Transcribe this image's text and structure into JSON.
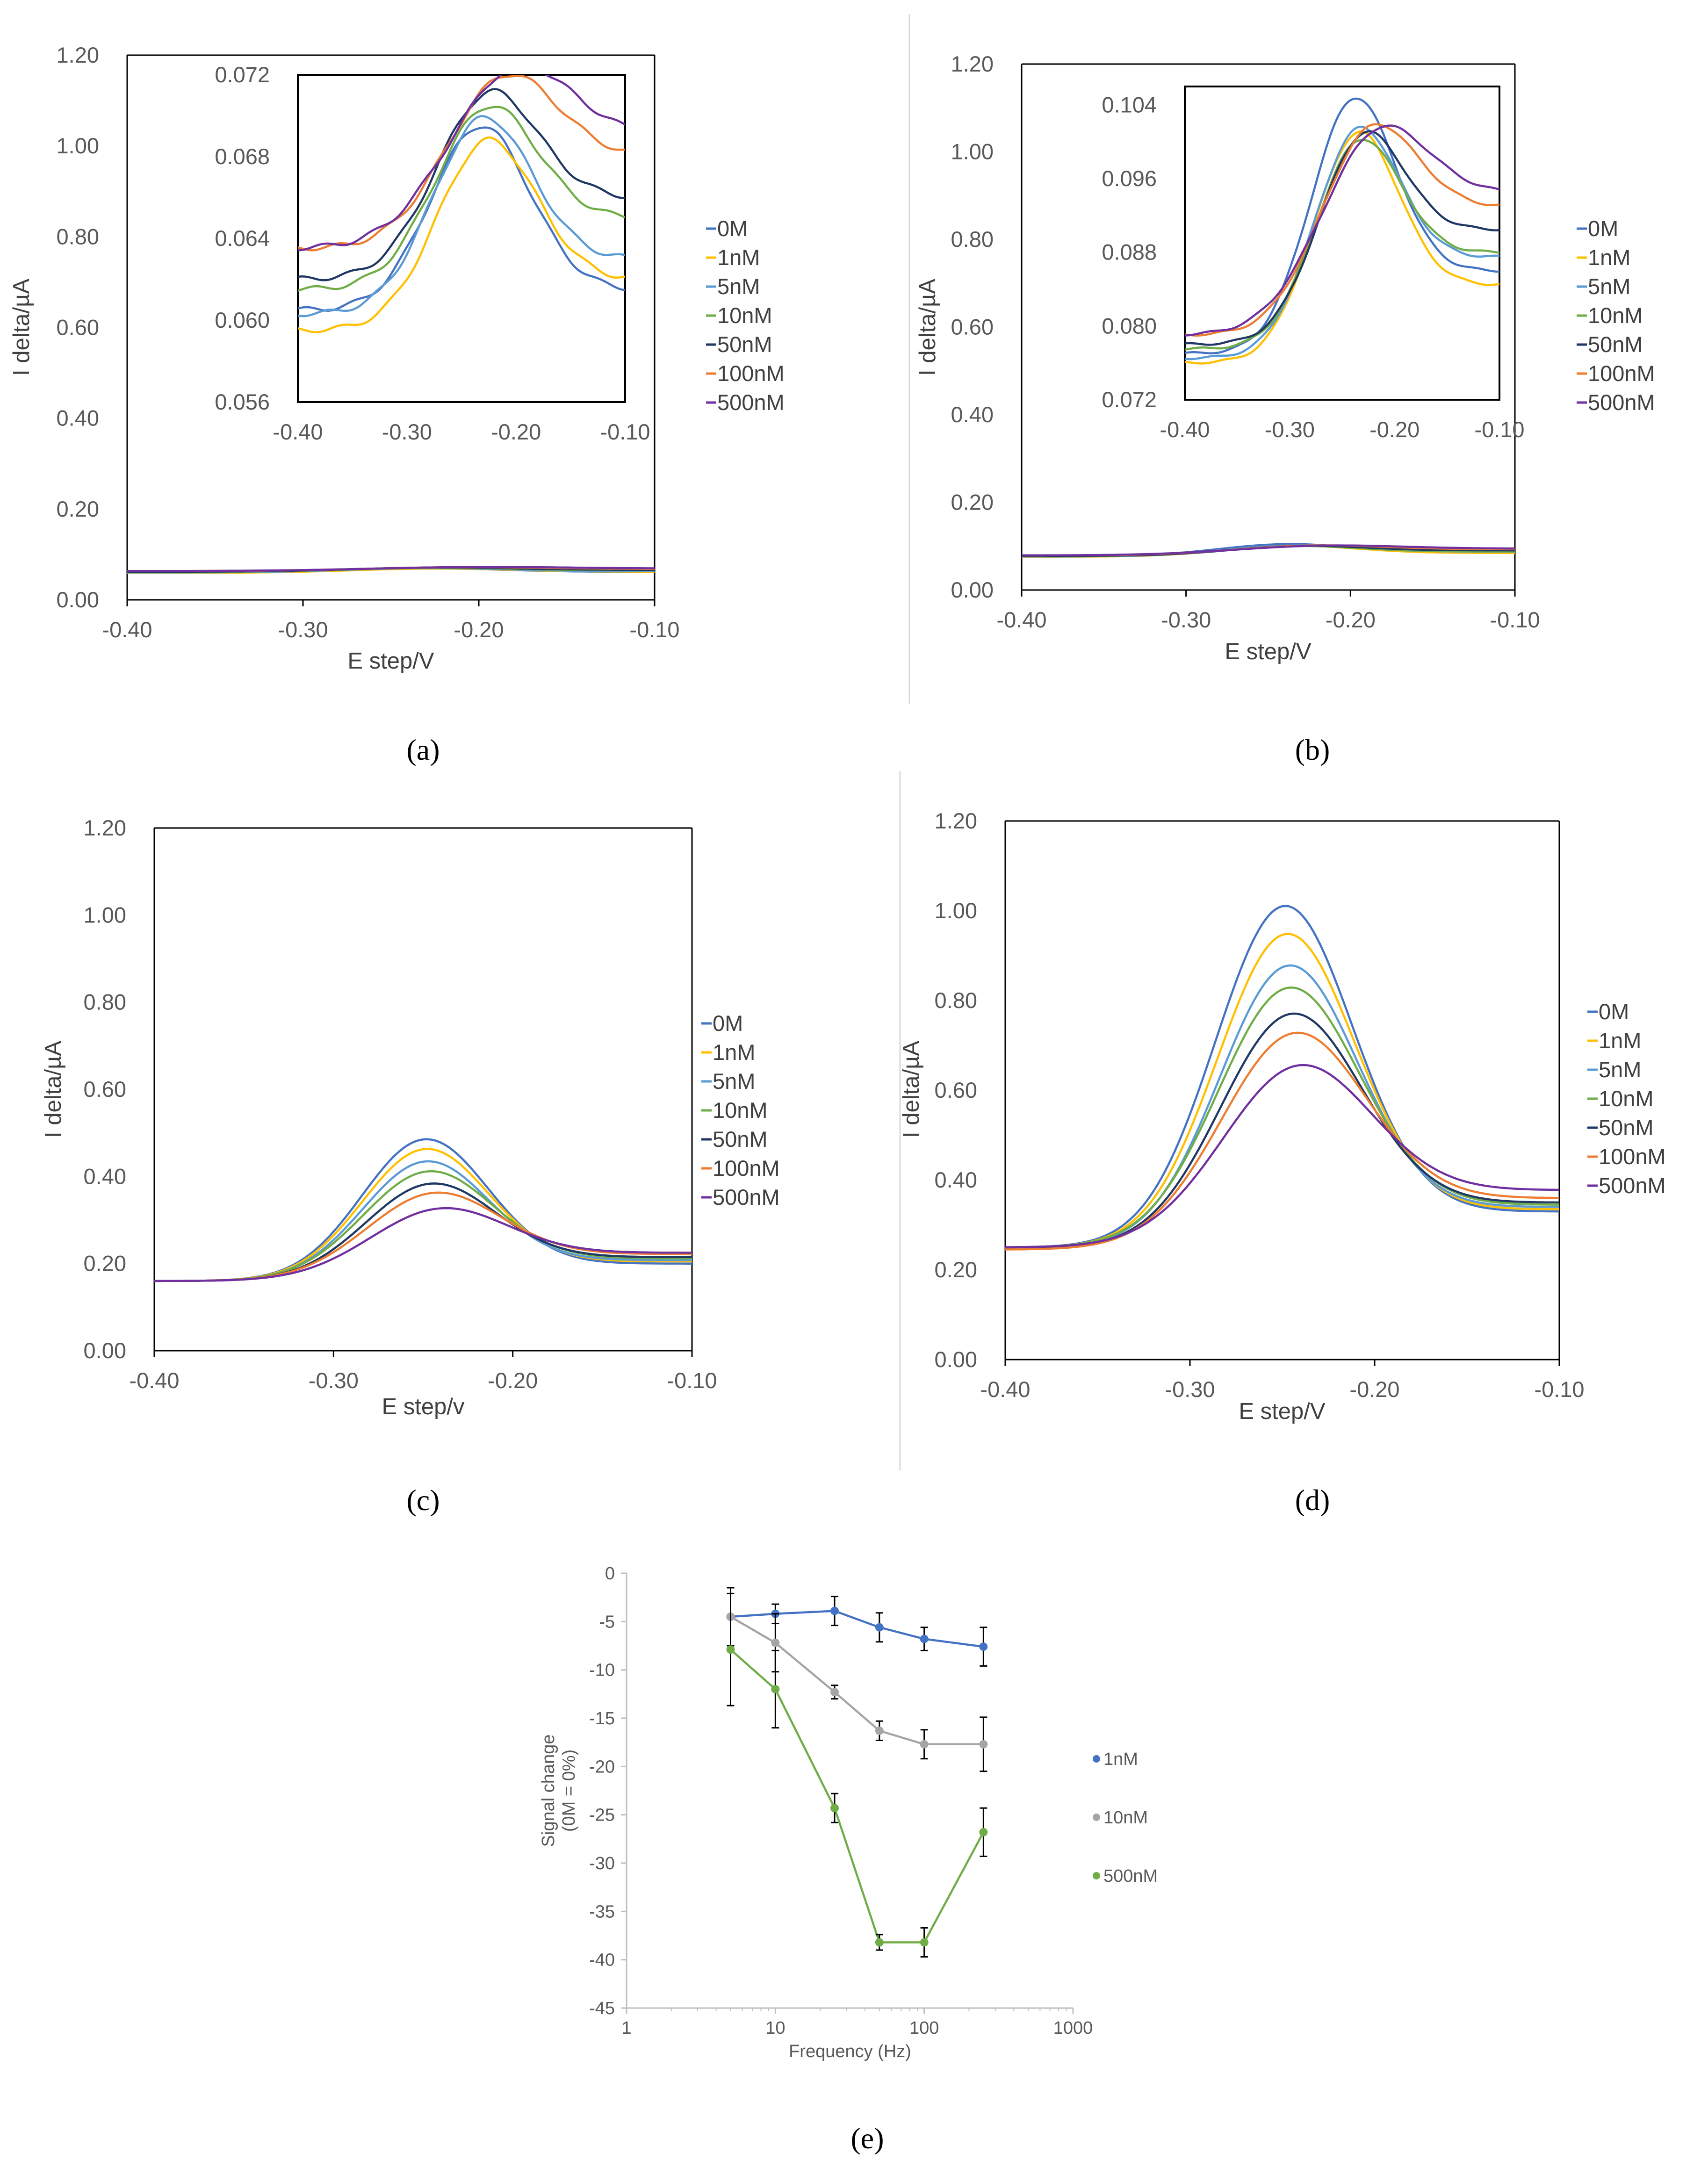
{
  "colors": {
    "axis": "#000000",
    "separator": "#d9d9d9",
    "gridline": "#d9d9d9",
    "errorbar": "#000000"
  },
  "series_styles": [
    {
      "name": "0M",
      "color": "#4472C4"
    },
    {
      "name": "1nM",
      "color": "#FFC000"
    },
    {
      "name": "5nM",
      "color": "#5B9BD5"
    },
    {
      "name": "10nM",
      "color": "#70AD47"
    },
    {
      "name": "50nM",
      "color": "#203864"
    },
    {
      "name": "100nM",
      "color": "#ED7D31"
    },
    {
      "name": "500nM",
      "color": "#7030A0"
    }
  ],
  "chart_data": [
    {
      "id": "a",
      "panel_label": "(a)",
      "type": "line",
      "xlabel": "E step/V",
      "ylabel": "I delta/µA",
      "xlim": [
        -0.4,
        -0.1
      ],
      "ylim": [
        0,
        1.2
      ],
      "x_ticks": [
        -0.4,
        -0.3,
        -0.2,
        -0.1
      ],
      "x_tick_labels": [
        "-0.40",
        "-0.30",
        "-0.20",
        "-0.10"
      ],
      "y_ticks": [
        0,
        0.2,
        0.4,
        0.6,
        0.8,
        1.0,
        1.2
      ],
      "y_tick_labels": [
        "0.00",
        "0.20",
        "0.40",
        "0.60",
        "0.80",
        "1.00",
        "1.20"
      ],
      "legend": [
        "0M",
        "1nM",
        "5nM",
        "10nM",
        "50nM",
        "100nM",
        "500nM"
      ],
      "series": [
        {
          "name": "0M",
          "baseline": 0.0605,
          "peak": 0.069,
          "center": -0.234,
          "width": 0.045,
          "tail": 0.0615
        },
        {
          "name": "1nM",
          "baseline": 0.0595,
          "peak": 0.0675,
          "center": -0.23,
          "width": 0.045,
          "tail": 0.062
        },
        {
          "name": "5nM",
          "baseline": 0.0603,
          "peak": 0.0685,
          "center": -0.234,
          "width": 0.045,
          "tail": 0.063
        },
        {
          "name": "10nM",
          "baseline": 0.0615,
          "peak": 0.0686,
          "center": -0.232,
          "width": 0.046,
          "tail": 0.065
        },
        {
          "name": "50nM",
          "baseline": 0.062,
          "peak": 0.069,
          "center": -0.232,
          "width": 0.046,
          "tail": 0.066
        },
        {
          "name": "100nM",
          "baseline": 0.0635,
          "peak": 0.0695,
          "center": -0.22,
          "width": 0.05,
          "tail": 0.068
        },
        {
          "name": "500nM",
          "baseline": 0.0635,
          "peak": 0.0693,
          "center": -0.215,
          "width": 0.055,
          "tail": 0.069
        }
      ],
      "inset": {
        "xlim": [
          -0.4,
          -0.1
        ],
        "ylim": [
          0.056,
          0.072
        ],
        "x_ticks": [
          -0.4,
          -0.3,
          -0.2,
          -0.1
        ],
        "x_tick_labels": [
          "-0.40",
          "-0.30",
          "-0.20",
          "-0.10"
        ],
        "y_ticks": [
          0.056,
          0.06,
          0.064,
          0.068,
          0.072
        ],
        "y_tick_labels": [
          "0.056",
          "0.060",
          "0.064",
          "0.068",
          "0.072"
        ]
      }
    },
    {
      "id": "b",
      "panel_label": "(b)",
      "type": "line",
      "xlabel": "E step/V",
      "ylabel": "I delta/µA",
      "xlim": [
        -0.4,
        -0.1
      ],
      "ylim": [
        0,
        1.2
      ],
      "x_ticks": [
        -0.4,
        -0.3,
        -0.2,
        -0.1
      ],
      "x_tick_labels": [
        "-0.40",
        "-0.30",
        "-0.20",
        "-0.10"
      ],
      "y_ticks": [
        0,
        0.2,
        0.4,
        0.6,
        0.8,
        1.0,
        1.2
      ],
      "y_tick_labels": [
        "0.00",
        "0.20",
        "0.40",
        "0.60",
        "0.80",
        "1.00",
        "1.20"
      ],
      "legend": [
        "0M",
        "1nM",
        "5nM",
        "10nM",
        "50nM",
        "100nM",
        "500nM"
      ],
      "series": [
        {
          "name": "0M",
          "baseline": 0.077,
          "peak": 0.1,
          "center": -0.243,
          "width": 0.04,
          "tail": 0.086
        },
        {
          "name": "1nM",
          "baseline": 0.076,
          "peak": 0.0965,
          "center": -0.24,
          "width": 0.04,
          "tail": 0.0845
        },
        {
          "name": "5nM",
          "baseline": 0.0765,
          "peak": 0.0955,
          "center": -0.241,
          "width": 0.04,
          "tail": 0.0875
        },
        {
          "name": "10nM",
          "baseline": 0.0775,
          "peak": 0.0945,
          "center": -0.24,
          "width": 0.04,
          "tail": 0.088
        },
        {
          "name": "50nM",
          "baseline": 0.078,
          "peak": 0.094,
          "center": -0.238,
          "width": 0.04,
          "tail": 0.0905
        },
        {
          "name": "100nM",
          "baseline": 0.079,
          "peak": 0.0938,
          "center": -0.233,
          "width": 0.045,
          "tail": 0.093
        },
        {
          "name": "500nM",
          "baseline": 0.079,
          "peak": 0.0925,
          "center": -0.23,
          "width": 0.05,
          "tail": 0.0945
        }
      ],
      "inset": {
        "xlim": [
          -0.4,
          -0.1
        ],
        "ylim": [
          0.072,
          0.106
        ],
        "x_ticks": [
          -0.4,
          -0.3,
          -0.2,
          -0.1
        ],
        "x_tick_labels": [
          "-0.40",
          "-0.30",
          "-0.20",
          "-0.10"
        ],
        "y_ticks": [
          0.072,
          0.08,
          0.088,
          0.096,
          0.104
        ],
        "y_tick_labels": [
          "0.072",
          "0.080",
          "0.088",
          "0.096",
          "0.104"
        ]
      }
    },
    {
      "id": "c",
      "panel_label": "(c)",
      "type": "line",
      "xlabel": "E step/v",
      "ylabel": "I delta/µA",
      "xlim": [
        -0.4,
        -0.1
      ],
      "ylim": [
        0,
        1.2
      ],
      "x_ticks": [
        -0.4,
        -0.3,
        -0.2,
        -0.1
      ],
      "x_tick_labels": [
        "-0.40",
        "-0.30",
        "-0.20",
        "-0.10"
      ],
      "y_ticks": [
        0,
        0.2,
        0.4,
        0.6,
        0.8,
        1.0,
        1.2
      ],
      "y_tick_labels": [
        "0.00",
        "0.20",
        "0.40",
        "0.60",
        "0.80",
        "1.00",
        "1.20"
      ],
      "legend": [
        "0M",
        "1nM",
        "5nM",
        "10nM",
        "50nM",
        "100nM",
        "500nM"
      ],
      "series": [
        {
          "name": "0M",
          "baseline": 0.16,
          "peak": 0.465,
          "center": -0.25,
          "width": 0.035,
          "tail": 0.2
        },
        {
          "name": "1nM",
          "baseline": 0.16,
          "peak": 0.44,
          "center": -0.25,
          "width": 0.035,
          "tail": 0.205
        },
        {
          "name": "5nM",
          "baseline": 0.16,
          "peak": 0.41,
          "center": -0.25,
          "width": 0.035,
          "tail": 0.208
        },
        {
          "name": "10nM",
          "baseline": 0.16,
          "peak": 0.385,
          "center": -0.249,
          "width": 0.036,
          "tail": 0.212
        },
        {
          "name": "50nM",
          "baseline": 0.16,
          "peak": 0.355,
          "center": -0.248,
          "width": 0.036,
          "tail": 0.215
        },
        {
          "name": "100nM",
          "baseline": 0.16,
          "peak": 0.33,
          "center": -0.247,
          "width": 0.037,
          "tail": 0.222
        },
        {
          "name": "500nM",
          "baseline": 0.16,
          "peak": 0.292,
          "center": -0.245,
          "width": 0.038,
          "tail": 0.225
        }
      ]
    },
    {
      "id": "d",
      "panel_label": "(d)",
      "type": "line",
      "xlabel": "E step/V",
      "ylabel": "I delta/µA",
      "xlim": [
        -0.4,
        -0.1
      ],
      "ylim": [
        0,
        1.2
      ],
      "x_ticks": [
        -0.4,
        -0.3,
        -0.2,
        -0.1
      ],
      "x_tick_labels": [
        "-0.40",
        "-0.30",
        "-0.20",
        "-0.10"
      ],
      "y_ticks": [
        0,
        0.2,
        0.4,
        0.6,
        0.8,
        1.0,
        1.2
      ],
      "y_tick_labels": [
        "0.00",
        "0.20",
        "0.40",
        "0.60",
        "0.80",
        "1.00",
        "1.20"
      ],
      "legend": [
        "0M",
        "1nM",
        "5nM",
        "10nM",
        "50nM",
        "100nM",
        "500nM"
      ],
      "series": [
        {
          "name": "0M",
          "baseline": 0.25,
          "peak": 0.97,
          "center": -0.25,
          "width": 0.037,
          "tail": 0.33
        },
        {
          "name": "1nM",
          "baseline": 0.25,
          "peak": 0.905,
          "center": -0.249,
          "width": 0.037,
          "tail": 0.335
        },
        {
          "name": "5nM",
          "baseline": 0.25,
          "peak": 0.832,
          "center": -0.248,
          "width": 0.037,
          "tail": 0.34
        },
        {
          "name": "10nM",
          "baseline": 0.25,
          "peak": 0.78,
          "center": -0.248,
          "width": 0.038,
          "tail": 0.345
        },
        {
          "name": "50nM",
          "baseline": 0.248,
          "peak": 0.718,
          "center": -0.247,
          "width": 0.038,
          "tail": 0.35
        },
        {
          "name": "100nM",
          "baseline": 0.245,
          "peak": 0.668,
          "center": -0.246,
          "width": 0.039,
          "tail": 0.36
        },
        {
          "name": "500nM",
          "baseline": 0.25,
          "peak": 0.588,
          "center": -0.245,
          "width": 0.04,
          "tail": 0.378
        }
      ]
    },
    {
      "id": "e",
      "panel_label": "(e)",
      "type": "scatter",
      "xscale": "log",
      "xlabel": "Frequency (Hz)",
      "ylabel_lines": [
        "Signal change",
        "(0M = 0%)"
      ],
      "xlim": [
        1,
        1000
      ],
      "ylim": [
        -45,
        0
      ],
      "x_ticks": [
        1,
        10,
        100,
        1000
      ],
      "x_tick_labels": [
        "1",
        "10",
        "100",
        "1000"
      ],
      "y_ticks": [
        0,
        -5,
        -10,
        -15,
        -20,
        -25,
        -30,
        -35,
        -40,
        -45
      ],
      "y_tick_labels": [
        "0",
        "-5",
        "-10",
        "-15",
        "-20",
        "-25",
        "-30",
        "-35",
        "-40",
        "-45"
      ],
      "x": [
        5,
        10,
        25,
        50,
        100,
        250
      ],
      "series": [
        {
          "name": "1nM",
          "color": "#4472C4",
          "values": [
            -4.5,
            -4.2,
            -3.9,
            -5.6,
            -6.8,
            -7.6
          ],
          "errors": [
            3.0,
            1.0,
            1.5,
            1.5,
            1.2,
            2.0
          ]
        },
        {
          "name": "10nM",
          "color": "#A5A5A5",
          "values": [
            -4.5,
            -7.2,
            -12.3,
            -16.3,
            -17.7,
            -17.7
          ],
          "errors": [
            3.0,
            3.0,
            0.7,
            1.0,
            1.5,
            2.8
          ]
        },
        {
          "name": "500nM",
          "color": "#70AD47",
          "values": [
            -7.9,
            -12.0,
            -24.3,
            -38.2,
            -38.2,
            -26.8
          ],
          "errors": [
            5.8,
            4.0,
            1.5,
            0.8,
            1.5,
            2.5
          ]
        }
      ]
    }
  ]
}
